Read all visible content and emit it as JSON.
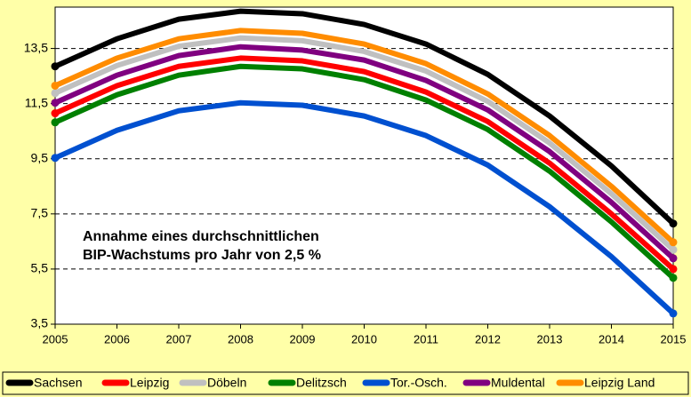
{
  "chart_data": {
    "type": "line",
    "annotation": [
      "Annahme eines durchschnittlichen",
      "BIP-Wachstums pro Jahr von 2,5 %"
    ],
    "categories": [
      "2005",
      "2006",
      "2007",
      "2008",
      "2009",
      "2010",
      "2011",
      "2012",
      "2013",
      "2014",
      "2015"
    ],
    "series": [
      {
        "name": "Sachsen",
        "color": "#000000",
        "values": [
          12.85,
          13.85,
          14.56,
          14.85,
          14.76,
          14.37,
          13.66,
          12.56,
          11.05,
          9.24,
          7.15
        ]
      },
      {
        "name": "Leipzig",
        "color": "#ff0000",
        "values": [
          11.15,
          12.15,
          12.85,
          13.15,
          13.05,
          12.66,
          11.92,
          10.85,
          9.34,
          7.5,
          5.5
        ]
      },
      {
        "name": "Döbeln",
        "color": "#c0c0c0",
        "values": [
          11.88,
          12.88,
          13.58,
          13.88,
          13.78,
          13.39,
          12.68,
          11.58,
          10.07,
          8.23,
          6.2
        ]
      },
      {
        "name": "Delitzsch",
        "color": "#008000",
        "values": [
          10.82,
          11.82,
          12.53,
          12.85,
          12.76,
          12.37,
          11.63,
          10.56,
          9.05,
          7.21,
          5.18
        ]
      },
      {
        "name": "Tor.-Osch.",
        "color": "#0050d0",
        "values": [
          9.53,
          10.53,
          11.24,
          11.53,
          11.44,
          11.05,
          10.34,
          9.27,
          7.76,
          5.95,
          3.89
        ]
      },
      {
        "name": "Muldental",
        "color": "#800080",
        "values": [
          11.53,
          12.53,
          13.24,
          13.56,
          13.44,
          13.08,
          12.34,
          11.27,
          9.76,
          7.92,
          5.89
        ]
      },
      {
        "name": "Leipzig Land",
        "color": "#ff8c00",
        "values": [
          12.15,
          13.15,
          13.85,
          14.15,
          14.05,
          13.66,
          12.95,
          11.85,
          10.34,
          8.5,
          6.47
        ]
      }
    ],
    "ylim": [
      3.5,
      15
    ],
    "yticks": [
      {
        "value": 3.5,
        "label": "3,5"
      },
      {
        "value": 5.5,
        "label": "5,5"
      },
      {
        "value": 7.5,
        "label": "7,5"
      },
      {
        "value": 9.5,
        "label": "9,5"
      },
      {
        "value": 11.5,
        "label": "11,5"
      },
      {
        "value": 13.5,
        "label": "13,5"
      }
    ],
    "grid": true,
    "legend": "bottom"
  }
}
